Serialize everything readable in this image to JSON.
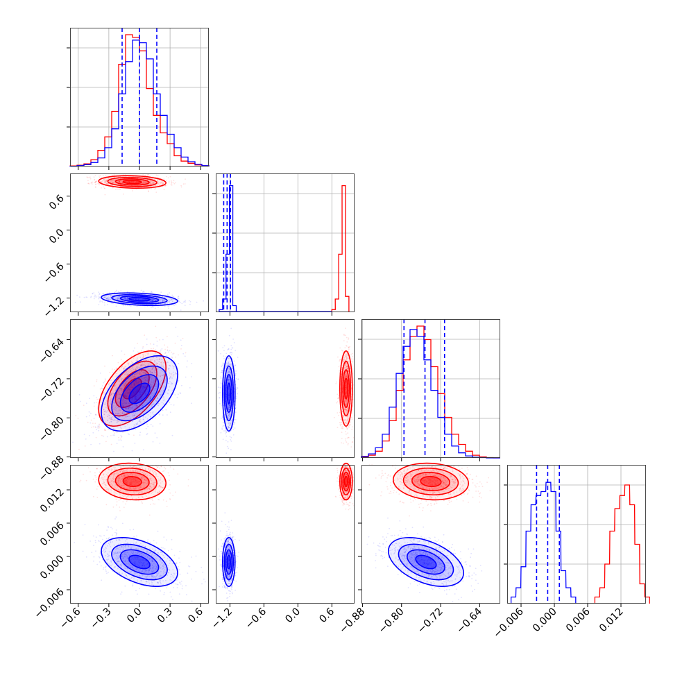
{
  "chart_data": {
    "type": "corner",
    "title": "",
    "parameters": [
      {
        "index": 0,
        "xlim": [
          -0.68,
          0.68
        ],
        "ticks": [
          -0.6,
          -0.3,
          0.0,
          0.3,
          0.6
        ],
        "tick_labels": [
          "−0.6",
          "−0.3",
          "0.0",
          "0.3",
          "0.6"
        ]
      },
      {
        "index": 1,
        "xlim": [
          -1.45,
          1.0
        ],
        "ticks": [
          -1.2,
          -0.6,
          0.0,
          0.6
        ],
        "tick_labels": [
          "−1.2",
          "−0.6",
          "0.0",
          "0.6"
        ]
      },
      {
        "index": 2,
        "xlim": [
          -0.882,
          -0.598
        ],
        "ticks": [
          -0.88,
          -0.8,
          -0.72,
          -0.64
        ],
        "tick_labels": [
          "−0.88",
          "−0.80",
          "−0.72",
          "−0.64"
        ]
      },
      {
        "index": 3,
        "xlim": [
          -0.0085,
          0.0165
        ],
        "ticks": [
          -0.006,
          0.0,
          0.006,
          0.012
        ],
        "tick_labels": [
          "−0.006",
          "0.000",
          "0.006",
          "0.012"
        ]
      }
    ],
    "series": [
      {
        "color": "#ff0000",
        "mean": [
          -0.07,
          0.85,
          -0.74,
          0.0135
        ],
        "std": [
          0.15,
          0.05,
          0.035,
          0.0015
        ],
        "corr_with_param0": [
          1.0,
          -0.15,
          0.55,
          -0.1
        ]
      },
      {
        "color": "#0000ff",
        "mean": [
          0.0,
          -1.22,
          -0.75,
          -0.001
        ],
        "std": [
          0.17,
          0.05,
          0.035,
          0.002
        ],
        "corr_with_param0": [
          1.0,
          -0.3,
          0.5,
          -0.45
        ]
      }
    ],
    "quantile_lines": {
      "color": "#0000ff",
      "style": "dashed",
      "params": [
        [
          -0.17,
          0.0,
          0.17
        ],
        [
          -1.31,
          -1.25,
          -1.19
        ],
        [
          -0.795,
          -0.752,
          -0.712
        ],
        [
          -0.0032,
          -0.0012,
          0.0009
        ]
      ]
    },
    "histograms": [
      {
        "param": 0,
        "edges_start": -0.68,
        "bin_width": 0.068,
        "red": [
          2,
          5,
          10,
          25,
          60,
          110,
          205,
          380,
          490,
          480,
          430,
          290,
          190,
          125,
          85,
          40,
          20,
          12,
          6,
          3
        ],
        "blue": [
          1,
          3,
          7,
          15,
          32,
          70,
          140,
          270,
          390,
          470,
          460,
          400,
          270,
          190,
          120,
          70,
          35,
          18,
          8,
          3
        ]
      },
      {
        "param": 1,
        "edges_start": -1.45,
        "bin_width": 0.1225,
        "red": [
          0,
          0,
          0,
          0,
          0,
          0,
          0,
          0,
          0,
          0,
          0,
          0,
          0,
          0,
          0,
          0,
          0,
          0,
          0,
          0,
          0,
          0,
          0,
          0,
          0,
          0,
          0,
          0,
          0,
          0,
          0,
          0,
          0,
          0,
          0,
          0,
          0,
          0,
          0,
          0,
          0,
          0,
          0,
          0,
          0,
          0,
          0,
          0,
          0,
          0
        ],
        "blue": [],
        "red_peaks": [
          0.6,
          0.85,
          0.92
        ],
        "blue_peaks": [
          -1.3,
          -1.25,
          -1.2
        ]
      },
      {
        "param": 2,
        "edges_start": -0.882,
        "bin_width": 0.0142,
        "red": [
          3,
          8,
          20,
          50,
          110,
          200,
          290,
          360,
          390,
          350,
          270,
          190,
          120,
          70,
          40,
          20,
          8,
          3,
          1,
          0
        ],
        "blue": [
          5,
          12,
          30,
          70,
          150,
          250,
          330,
          380,
          360,
          290,
          200,
          120,
          70,
          35,
          15,
          6,
          2,
          1,
          0,
          0
        ]
      },
      {
        "param": 3,
        "edges_start": -0.0085,
        "bin_width": 0.00125,
        "red": [
          0,
          0,
          0,
          0,
          0,
          0,
          0,
          0,
          0,
          0,
          0,
          0,
          0,
          0,
          0,
          0,
          0,
          0,
          0,
          0
        ],
        "blue": []
      }
    ],
    "grid": true,
    "legend": "none"
  }
}
